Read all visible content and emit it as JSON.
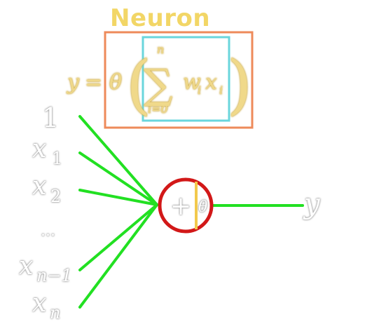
{
  "title": "Neuron",
  "formula": {
    "lhs": "y",
    "equals": "=",
    "activation": "θ",
    "left_paren": "(",
    "right_paren": ")",
    "sum_symbol": "∑",
    "upper_limit": "n",
    "lower_limit": "i=0",
    "term_w": "w",
    "term_w_sub": "i",
    "term_x": "x",
    "term_x_sub": "i"
  },
  "inputs": [
    {
      "main": "1",
      "sub": ""
    },
    {
      "main": "x",
      "sub": "1"
    },
    {
      "main": "x",
      "sub": "2"
    },
    {
      "main": "...",
      "sub": ""
    },
    {
      "main": "x",
      "sub": "n−1"
    },
    {
      "main": "x",
      "sub": "n"
    }
  ],
  "node": {
    "sum_symbol": "+",
    "activation_symbol": "θ"
  },
  "output": "y",
  "colors": {
    "title": "#f2d666",
    "formula": "#f0d98a",
    "outer_box": "#ee8a5a",
    "inner_box": "#6ad6dc",
    "edges": "#22e022",
    "node_circle": "#d21818",
    "node_divider": "#f2c94c",
    "labels": "#ffffff"
  }
}
